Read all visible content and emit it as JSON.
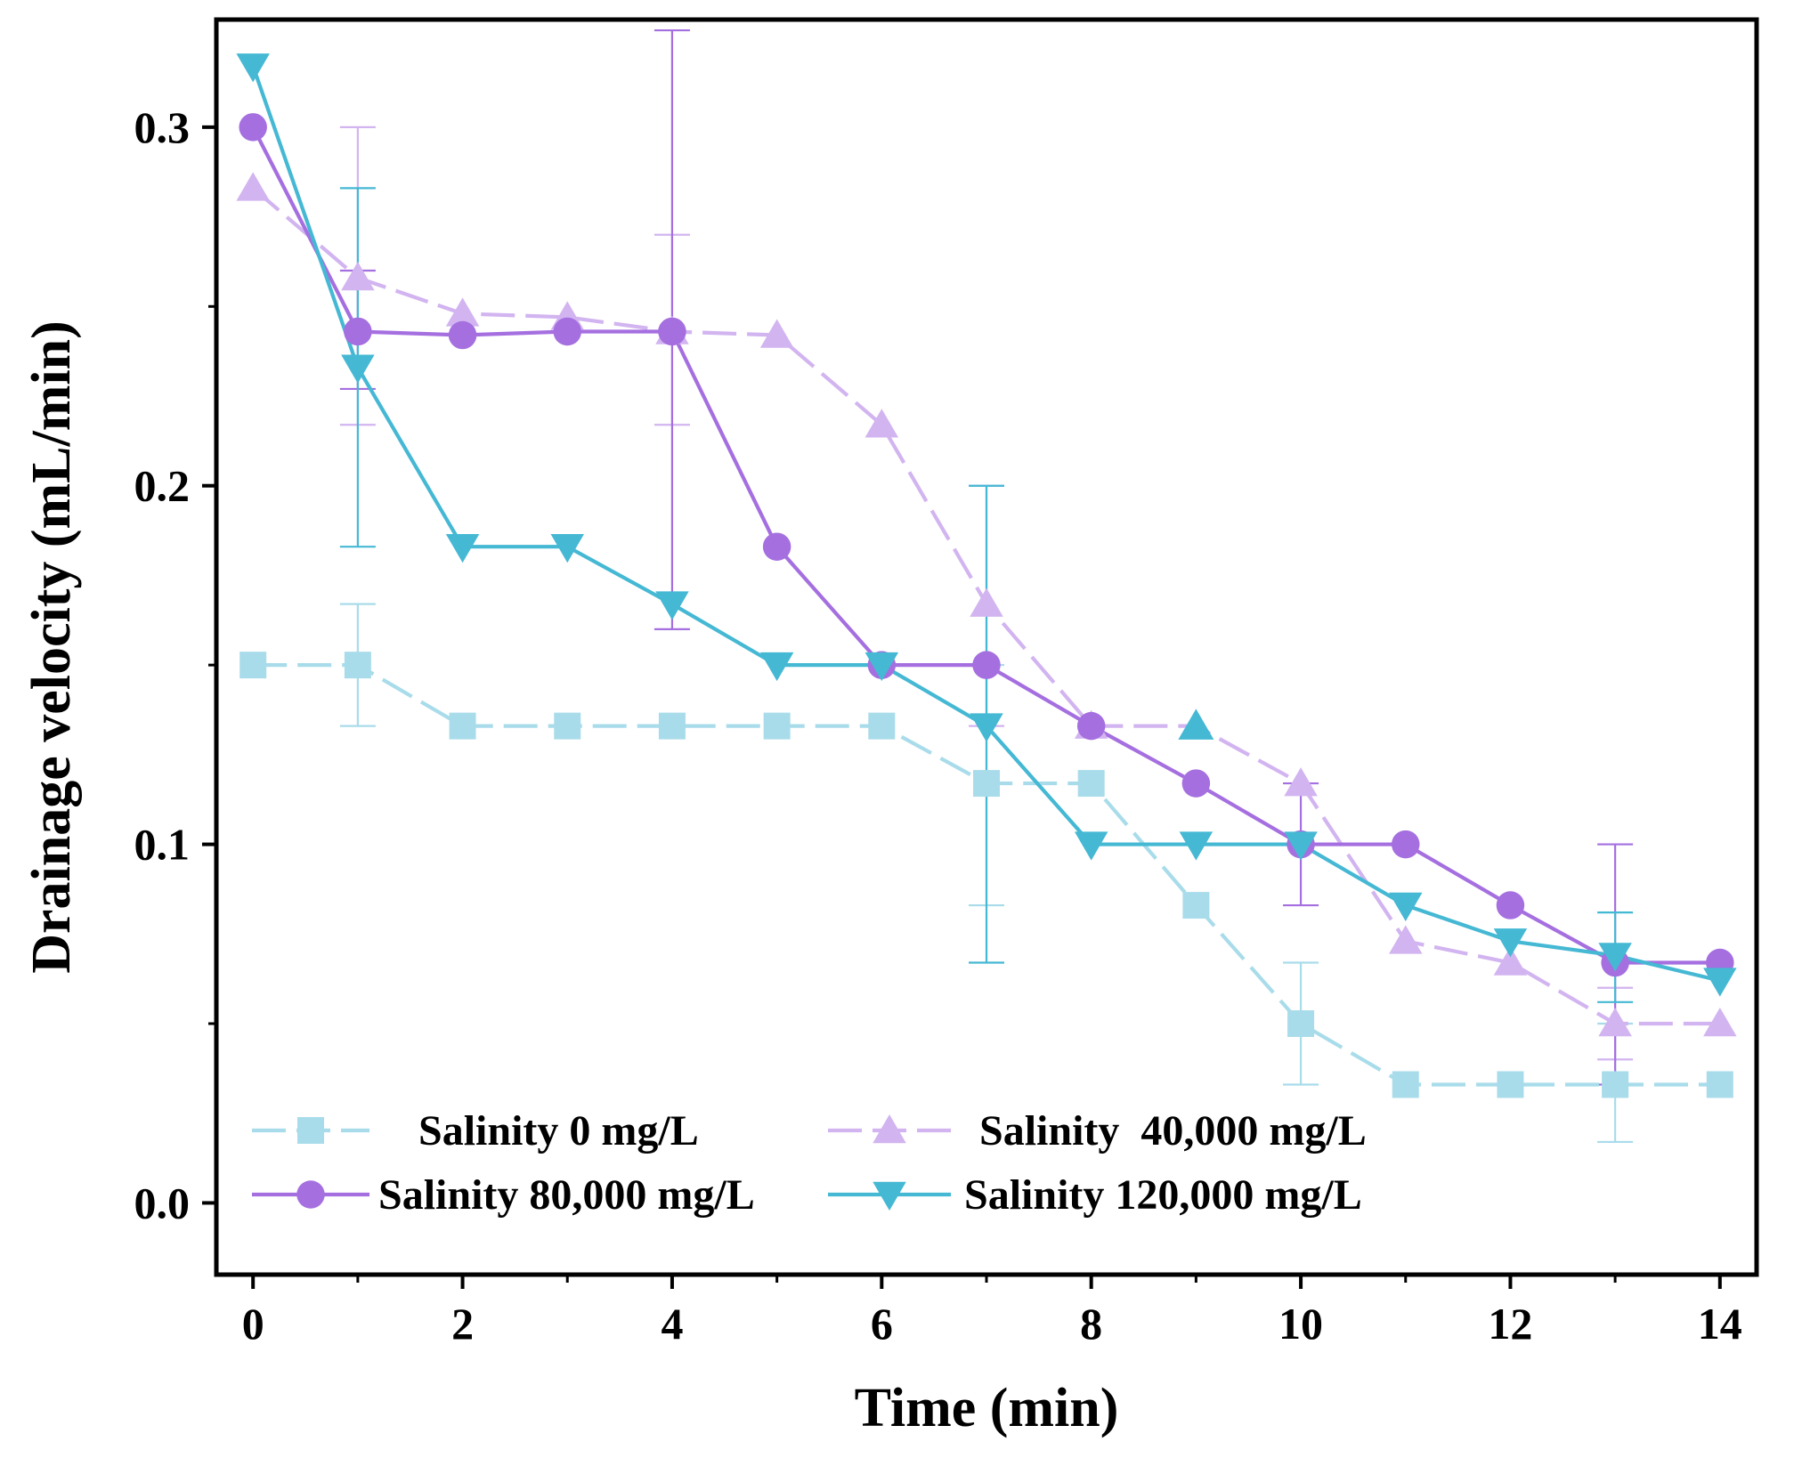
{
  "chart_data": {
    "type": "line",
    "title": "",
    "xlabel": "Time (min)",
    "ylabel": "Drainage velocity (mL/min)",
    "xlim": [
      -0.35,
      14.35
    ],
    "ylim": [
      -0.02,
      0.33
    ],
    "xticks": [
      0,
      2,
      4,
      6,
      8,
      10,
      12,
      14
    ],
    "yticks": [
      0.0,
      0.1,
      0.2,
      0.3
    ],
    "ytick_labels": [
      "0.0",
      "0.1",
      "0.2",
      "0.3"
    ],
    "grid": false,
    "legend_position": "bottom-left",
    "series": [
      {
        "name": "Salinity 0 mg/L",
        "color": "#a9dcea",
        "marker": "square",
        "dashed": true,
        "x": [
          0,
          1,
          2,
          3,
          4,
          5,
          6,
          7,
          8,
          9,
          10,
          11,
          12,
          13,
          14
        ],
        "y": [
          0.15,
          0.15,
          0.133,
          0.133,
          0.133,
          0.133,
          0.133,
          0.117,
          0.117,
          0.083,
          0.05,
          0.033,
          0.033,
          0.033,
          0.033
        ],
        "errors": [
          {
            "x": 1,
            "low": 0.133,
            "high": 0.167
          },
          {
            "x": 7,
            "low": 0.083,
            "high": 0.15
          },
          {
            "x": 10,
            "low": 0.033,
            "high": 0.067
          },
          {
            "x": 13,
            "low": 0.017,
            "high": 0.05
          }
        ]
      },
      {
        "name": "Salinity  40,000 mg/L",
        "color": "#d2b4f0",
        "marker": "triangle-up",
        "dashed": true,
        "x": [
          0,
          1,
          2,
          3,
          4,
          5,
          6,
          7,
          8,
          9,
          10,
          11,
          12,
          13,
          14
        ],
        "y": [
          0.283,
          0.258,
          0.248,
          0.247,
          0.243,
          0.242,
          0.217,
          0.167,
          0.133,
          0.133,
          0.117,
          0.073,
          0.067,
          0.05,
          0.05
        ],
        "errors": [
          {
            "x": 1,
            "low": 0.217,
            "high": 0.3
          },
          {
            "x": 4,
            "low": 0.217,
            "high": 0.27
          },
          {
            "x": 7,
            "low": 0.133,
            "high": 0.2
          },
          {
            "x": 13,
            "low": 0.04,
            "high": 0.06
          }
        ]
      },
      {
        "name": "Salinity 80,000 mg/L",
        "color": "#a56fe0",
        "marker": "circle",
        "dashed": false,
        "x": [
          0,
          1,
          2,
          3,
          4,
          5,
          6,
          7,
          8,
          9,
          10,
          11,
          12,
          13,
          14
        ],
        "y": [
          0.3,
          0.243,
          0.242,
          0.243,
          0.243,
          0.183,
          0.15,
          0.15,
          0.133,
          0.117,
          0.1,
          0.1,
          0.083,
          0.067,
          0.067
        ],
        "errors": [
          {
            "x": 1,
            "low": 0.227,
            "high": 0.26
          },
          {
            "x": 4,
            "low": 0.16,
            "high": 0.327
          },
          {
            "x": 10,
            "low": 0.083,
            "high": 0.117
          },
          {
            "x": 13,
            "low": 0.033,
            "high": 0.1
          }
        ]
      },
      {
        "name": "Salinity 120,000 mg/L",
        "color": "#45b8d4",
        "marker": "triangle-down",
        "dashed": false,
        "x": [
          0,
          1,
          2,
          3,
          4,
          5,
          6,
          7,
          8,
          9,
          10,
          11,
          12,
          13,
          14
        ],
        "y": [
          0.317,
          0.233,
          0.183,
          0.183,
          0.167,
          0.15,
          0.15,
          0.133,
          0.1,
          0.1,
          0.1,
          0.083,
          0.073,
          0.069,
          0.062
        ],
        "errors": [
          {
            "x": 1,
            "low": 0.183,
            "high": 0.283
          },
          {
            "x": 7,
            "low": 0.067,
            "high": 0.2
          },
          {
            "x": 13,
            "low": 0.056,
            "high": 0.081
          }
        ]
      }
    ],
    "extra_markers": [
      {
        "series": "Salinity 120,000 mg/L",
        "marker": "triangle-up",
        "x": 9,
        "y": 0.133
      }
    ]
  }
}
